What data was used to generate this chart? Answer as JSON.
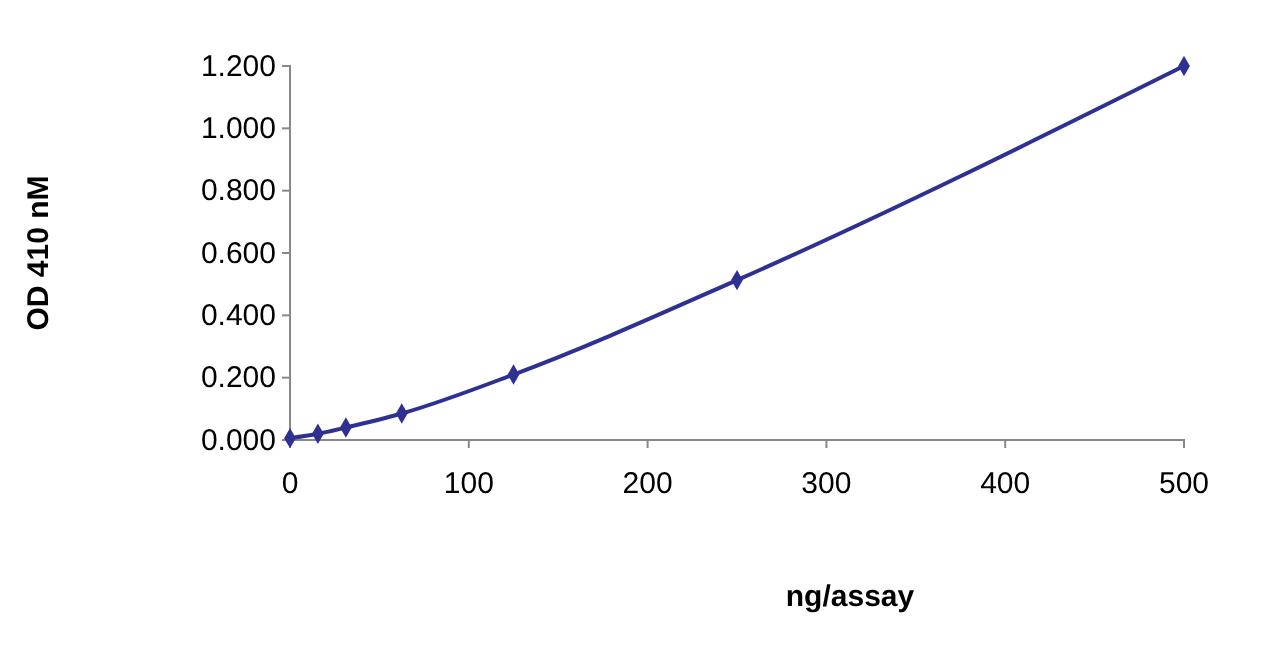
{
  "chart_data": {
    "type": "line",
    "xlabel": "ng/assay",
    "ylabel": "OD 410 nM",
    "x": [
      0,
      15.6,
      31.25,
      62.5,
      125,
      250,
      500
    ],
    "series": [
      {
        "color": "#2e3192",
        "values": [
          0.006,
          0.02,
          0.04,
          0.085,
          0.21,
          0.513,
          1.2
        ]
      }
    ],
    "xlim": [
      0,
      500
    ],
    "xticks": [
      0,
      100,
      200,
      300,
      400,
      500
    ],
    "ylim": [
      0,
      1.2
    ],
    "yticks": [
      {
        "value": 0,
        "label": "0.000"
      },
      {
        "value": 0.2,
        "label": "0.200"
      },
      {
        "value": 0.4,
        "label": "0.400"
      },
      {
        "value": 0.6,
        "label": "0.600"
      },
      {
        "value": 0.8,
        "label": "0.800"
      },
      {
        "value": 1,
        "label": "1.000"
      },
      {
        "value": 1.2,
        "label": "1.200"
      }
    ],
    "marker": "diamond",
    "line_style": "solid"
  }
}
